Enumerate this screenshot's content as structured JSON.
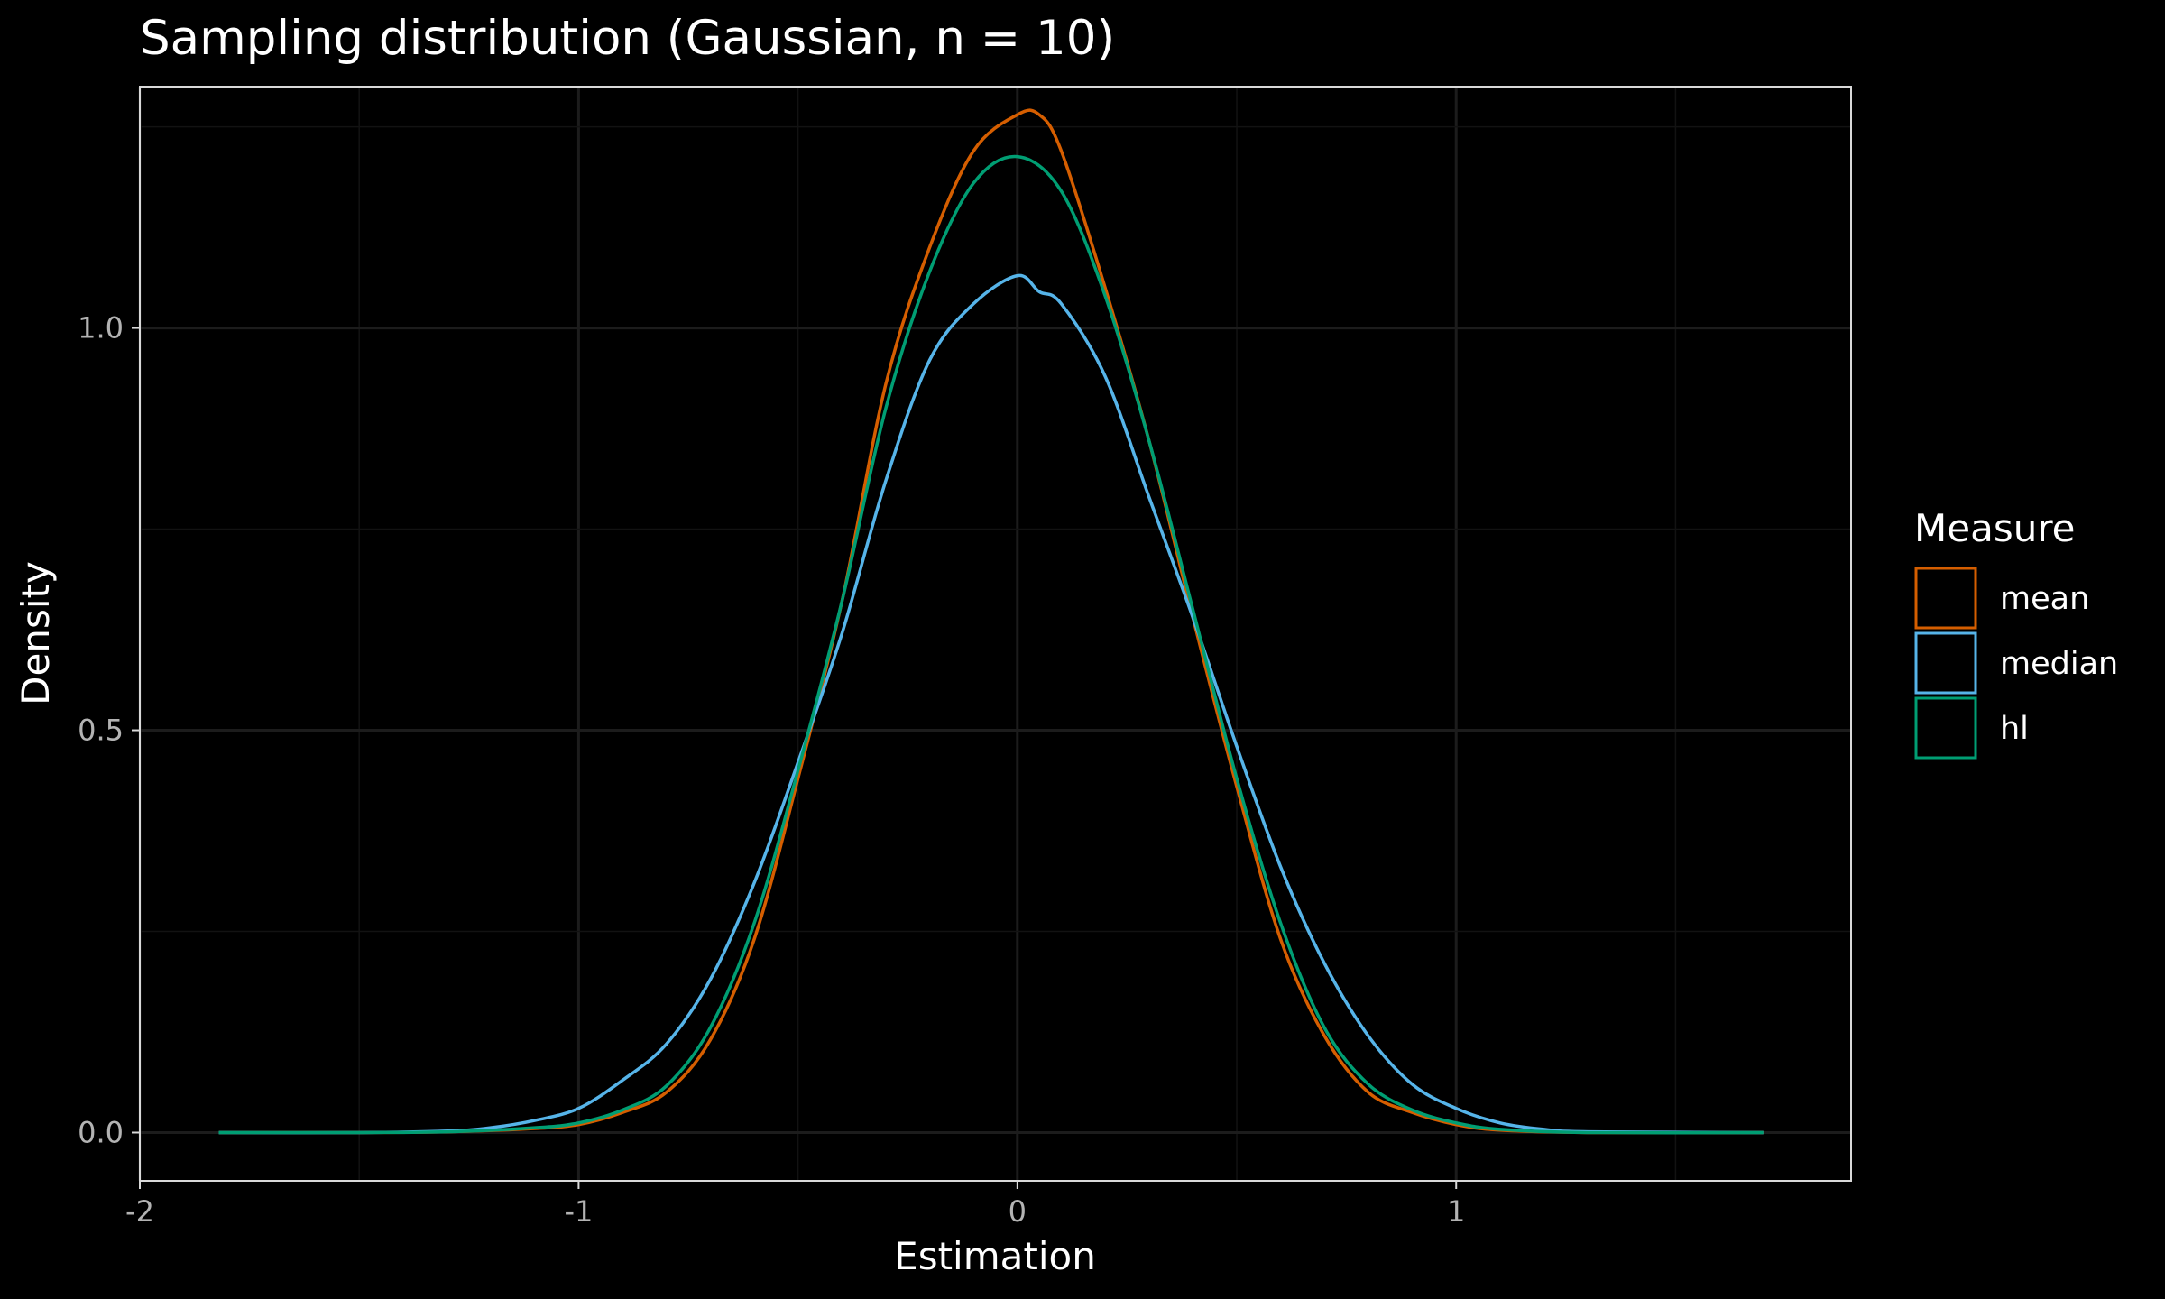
{
  "chart_data": {
    "type": "line",
    "title": "Sampling distribution (Gaussian, n = 10)",
    "xlabel": "Estimation",
    "ylabel": "Density",
    "xlim": [
      -2,
      1.9
    ],
    "ylim": [
      -0.06,
      1.3
    ],
    "x_ticks": [
      -2,
      -1,
      0,
      1
    ],
    "x_tick_labels": [
      "-2",
      "-1",
      "0",
      "1"
    ],
    "y_ticks": [
      0.0,
      0.5,
      1.0
    ],
    "y_tick_labels": [
      "0.0",
      "0.5",
      "1.0"
    ],
    "grid": true,
    "legend": {
      "title": "Measure",
      "position": "right"
    },
    "series": [
      {
        "name": "mean",
        "color": "#D55E00",
        "points": [
          [
            -1.82,
            0.0
          ],
          [
            -1.5,
            0.0
          ],
          [
            -1.3,
            0.001
          ],
          [
            -1.1,
            0.005
          ],
          [
            -1.0,
            0.01
          ],
          [
            -0.9,
            0.025
          ],
          [
            -0.8,
            0.05
          ],
          [
            -0.7,
            0.115
          ],
          [
            -0.6,
            0.24
          ],
          [
            -0.5,
            0.44
          ],
          [
            -0.4,
            0.66
          ],
          [
            -0.3,
            0.93
          ],
          [
            -0.2,
            1.1
          ],
          [
            -0.1,
            1.22
          ],
          [
            0.0,
            1.265
          ],
          [
            0.05,
            1.265
          ],
          [
            0.1,
            1.22
          ],
          [
            0.2,
            1.05
          ],
          [
            0.3,
            0.86
          ],
          [
            0.4,
            0.64
          ],
          [
            0.5,
            0.43
          ],
          [
            0.6,
            0.24
          ],
          [
            0.7,
            0.12
          ],
          [
            0.8,
            0.05
          ],
          [
            0.9,
            0.025
          ],
          [
            1.0,
            0.01
          ],
          [
            1.1,
            0.003
          ],
          [
            1.3,
            0.0
          ],
          [
            1.7,
            0.0
          ]
        ]
      },
      {
        "name": "median",
        "color": "#56B4E9",
        "points": [
          [
            -1.82,
            0.0
          ],
          [
            -1.5,
            0.0
          ],
          [
            -1.3,
            0.002
          ],
          [
            -1.2,
            0.006
          ],
          [
            -1.1,
            0.015
          ],
          [
            -1.0,
            0.03
          ],
          [
            -0.9,
            0.065
          ],
          [
            -0.8,
            0.11
          ],
          [
            -0.7,
            0.19
          ],
          [
            -0.6,
            0.31
          ],
          [
            -0.5,
            0.46
          ],
          [
            -0.4,
            0.62
          ],
          [
            -0.3,
            0.81
          ],
          [
            -0.2,
            0.96
          ],
          [
            -0.1,
            1.03
          ],
          [
            0.0,
            1.065
          ],
          [
            0.05,
            1.045
          ],
          [
            0.1,
            1.03
          ],
          [
            0.2,
            0.94
          ],
          [
            0.3,
            0.79
          ],
          [
            0.4,
            0.64
          ],
          [
            0.5,
            0.48
          ],
          [
            0.6,
            0.33
          ],
          [
            0.7,
            0.21
          ],
          [
            0.8,
            0.12
          ],
          [
            0.9,
            0.06
          ],
          [
            1.0,
            0.03
          ],
          [
            1.1,
            0.012
          ],
          [
            1.2,
            0.004
          ],
          [
            1.3,
            0.001
          ],
          [
            1.7,
            0.0
          ]
        ]
      },
      {
        "name": "hl",
        "color": "#009E73",
        "points": [
          [
            -1.82,
            0.0
          ],
          [
            -1.5,
            0.0
          ],
          [
            -1.3,
            0.001
          ],
          [
            -1.1,
            0.006
          ],
          [
            -1.0,
            0.012
          ],
          [
            -0.9,
            0.028
          ],
          [
            -0.8,
            0.058
          ],
          [
            -0.7,
            0.13
          ],
          [
            -0.6,
            0.26
          ],
          [
            -0.5,
            0.45
          ],
          [
            -0.4,
            0.66
          ],
          [
            -0.3,
            0.9
          ],
          [
            -0.2,
            1.07
          ],
          [
            -0.1,
            1.18
          ],
          [
            0.0,
            1.213
          ],
          [
            0.1,
            1.17
          ],
          [
            0.2,
            1.04
          ],
          [
            0.3,
            0.86
          ],
          [
            0.4,
            0.65
          ],
          [
            0.5,
            0.44
          ],
          [
            0.6,
            0.26
          ],
          [
            0.7,
            0.13
          ],
          [
            0.8,
            0.06
          ],
          [
            0.9,
            0.028
          ],
          [
            1.0,
            0.012
          ],
          [
            1.1,
            0.004
          ],
          [
            1.3,
            0.0
          ],
          [
            1.7,
            0.0
          ]
        ]
      }
    ]
  }
}
